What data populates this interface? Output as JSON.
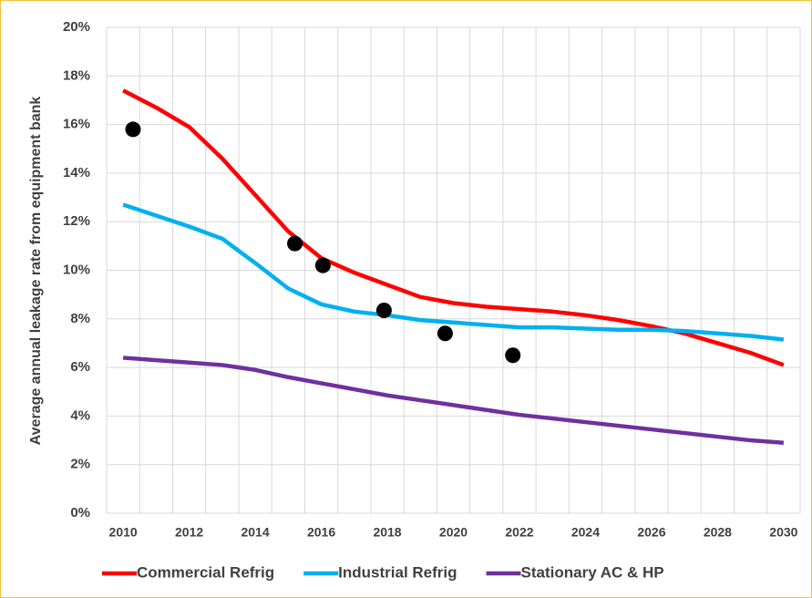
{
  "chart_data": {
    "type": "line",
    "y_label": "Average annual leakage rate from equipment bank",
    "x": [
      2010,
      2011,
      2012,
      2013,
      2014,
      2015,
      2016,
      2017,
      2018,
      2019,
      2020,
      2021,
      2022,
      2023,
      2024,
      2025,
      2026,
      2027,
      2028,
      2029,
      2030
    ],
    "series": [
      {
        "name": "Commercial Refrig",
        "color": "#ff0000",
        "values": [
          17.4,
          16.7,
          15.9,
          14.6,
          13.1,
          11.6,
          10.5,
          9.9,
          9.4,
          8.9,
          8.65,
          8.5,
          8.4,
          8.3,
          8.15,
          7.95,
          7.7,
          7.4,
          7.0,
          6.6,
          6.1
        ]
      },
      {
        "name": "Industrial Refrig",
        "color": "#00b0f0",
        "values": [
          12.7,
          12.25,
          11.8,
          11.3,
          10.3,
          9.25,
          8.6,
          8.3,
          8.15,
          7.95,
          7.85,
          7.75,
          7.65,
          7.65,
          7.6,
          7.55,
          7.55,
          7.5,
          7.4,
          7.3,
          7.15
        ]
      },
      {
        "name": "Stationary AC & HP",
        "color": "#7030a0",
        "values": [
          6.4,
          6.3,
          6.2,
          6.1,
          5.9,
          5.6,
          5.35,
          5.1,
          4.85,
          4.65,
          4.45,
          4.25,
          4.05,
          3.9,
          3.75,
          3.6,
          3.45,
          3.3,
          3.15,
          3.0,
          2.9
        ]
      }
    ],
    "points": {
      "color": "#000000",
      "x": [
        2010.3,
        2015.2,
        2016.05,
        2017.9,
        2019.75,
        2021.8
      ],
      "values": [
        15.8,
        11.1,
        10.2,
        8.35,
        7.4,
        6.5
      ]
    },
    "xlim": [
      2009.5,
      2030.5
    ],
    "xticks": [
      2010,
      2012,
      2014,
      2016,
      2018,
      2020,
      2022,
      2024,
      2026,
      2028,
      2030
    ],
    "ylim": [
      0,
      20
    ],
    "yticks": [
      {
        "value": 0,
        "label": "0%"
      },
      {
        "value": 2,
        "label": "2%"
      },
      {
        "value": 4,
        "label": "4%"
      },
      {
        "value": 6,
        "label": "6%"
      },
      {
        "value": 8,
        "label": "8%"
      },
      {
        "value": 10,
        "label": "10%"
      },
      {
        "value": 12,
        "label": "12%"
      },
      {
        "value": 14,
        "label": "14%"
      },
      {
        "value": 16,
        "label": "16%"
      },
      {
        "value": 18,
        "label": "18%"
      },
      {
        "value": 20,
        "label": "20%"
      }
    ],
    "grid": true,
    "legend": "bottom"
  }
}
